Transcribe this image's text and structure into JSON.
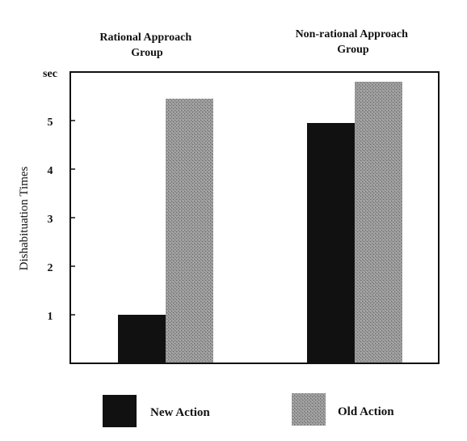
{
  "chart_data": {
    "type": "bar",
    "categories": [
      "Rational Approach\nGroup",
      "Non-rational Approach\nGroup"
    ],
    "series": [
      {
        "name": "New Action",
        "values": [
          1.0,
          4.95
        ],
        "color": "#111111"
      },
      {
        "name": "Old Action",
        "values": [
          5.45,
          5.8
        ],
        "color": "#8a8a8a"
      }
    ],
    "ylabel": "Dishabituation Times",
    "yunit": "sec",
    "yticks": [
      "1",
      "2",
      "3",
      "4",
      "5"
    ],
    "ylim": [
      0,
      6
    ],
    "grid": false,
    "legend_position": "bottom"
  }
}
